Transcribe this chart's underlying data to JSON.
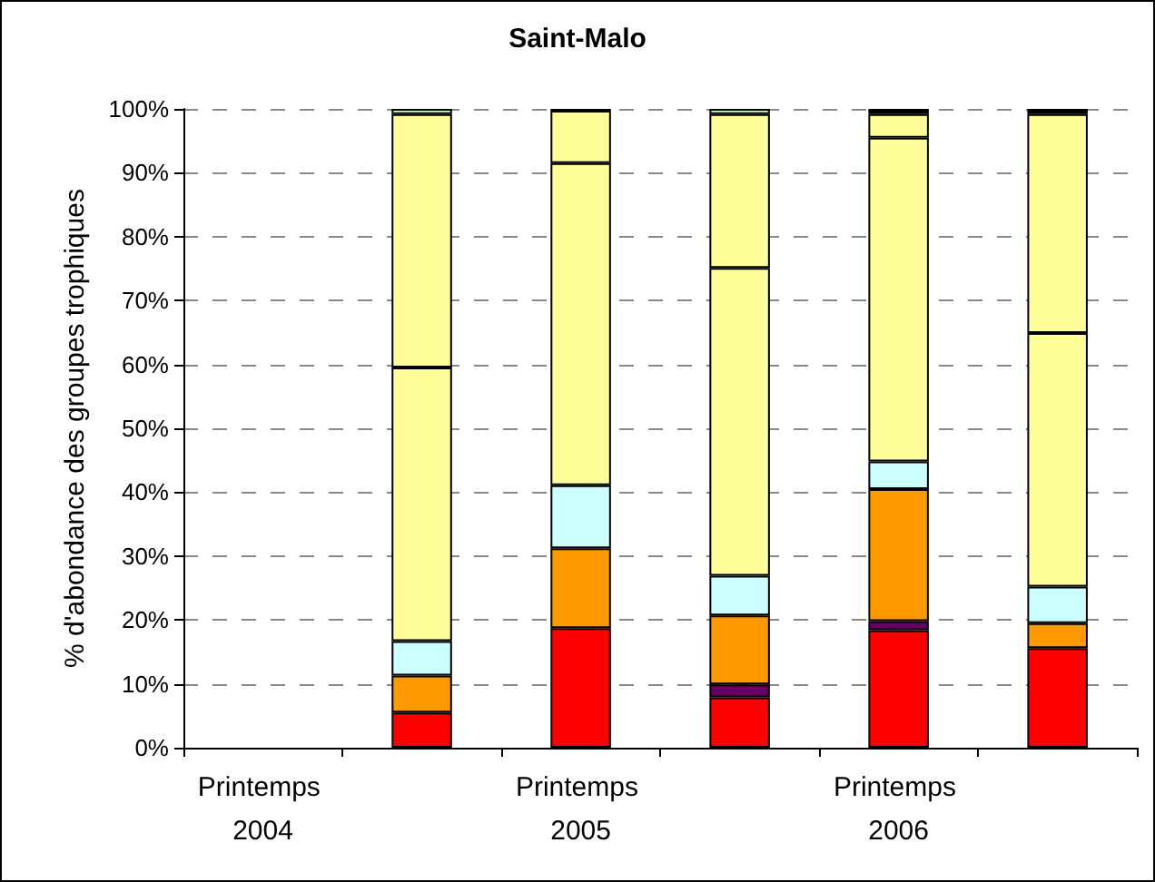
{
  "chart_data": {
    "type": "bar",
    "title": "Saint-Malo",
    "ylabel": "% d'abondance des groupes trophiques",
    "stacked": true,
    "grid": "y",
    "categories": [
      "Printemps 2004",
      null,
      "Printemps 2005",
      null,
      "Printemps 2006",
      null
    ],
    "ylim": [
      0,
      100
    ],
    "yticks": [
      {
        "value": 0,
        "label": "0%"
      },
      {
        "value": 10,
        "label": "10%"
      },
      {
        "value": 20,
        "label": "20%"
      },
      {
        "value": 30,
        "label": "30%"
      },
      {
        "value": 40,
        "label": "40%"
      },
      {
        "value": 50,
        "label": "50%"
      },
      {
        "value": 60,
        "label": "60%"
      },
      {
        "value": 70,
        "label": "70%"
      },
      {
        "value": 80,
        "label": "80%"
      },
      {
        "value": 90,
        "label": "90%"
      },
      {
        "value": 100,
        "label": "100%"
      }
    ],
    "series": [
      {
        "color": "#ff0000",
        "values": [
          null,
          5.5,
          18.7,
          7.9,
          18.4,
          15.6
        ]
      },
      {
        "color": "#660066",
        "values": [
          null,
          0,
          0,
          2.0,
          1.4,
          0
        ]
      },
      {
        "color": "#ff9900",
        "values": [
          null,
          5.8,
          12.5,
          10.8,
          20.7,
          3.9
        ]
      },
      {
        "color": "#ccffff",
        "values": [
          null,
          5.4,
          9.9,
          6.2,
          4.3,
          5.7
        ]
      },
      {
        "color": "#ffff99",
        "values": [
          null,
          42.8,
          50.4,
          48.2,
          50.7,
          39.7
        ]
      },
      {
        "color": "#ffff99",
        "values": [
          null,
          39.7,
          8.2,
          24.1,
          3.7,
          34.3
        ]
      },
      {
        "color": "#ccffcc",
        "values": [
          null,
          0.8,
          0,
          0.8,
          0,
          0
        ]
      },
      {
        "color": "#000000",
        "values": [
          null,
          0,
          0.3,
          0,
          0.8,
          0.8
        ]
      }
    ]
  }
}
